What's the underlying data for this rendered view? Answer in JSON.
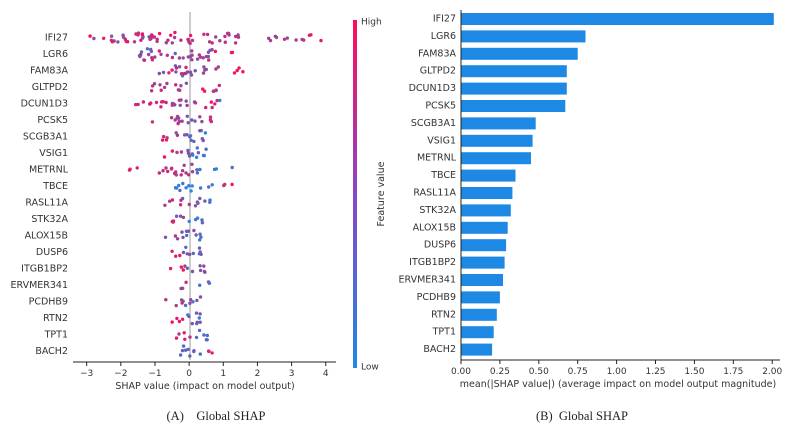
{
  "colors": {
    "low": "#1e88e5",
    "high": "#ff0d57",
    "bar": "#1e88e5",
    "axis": "#222222",
    "zero_line": "#999999"
  },
  "chart_data": [
    {
      "type": "scatter",
      "subtype": "shap-beeswarm",
      "panel_caption": "(A)    Global SHAP",
      "xlabel": "SHAP value (impact on model output)",
      "xlim": [
        -3.4,
        4.3
      ],
      "xticks": [
        -3,
        -2,
        -1,
        0,
        1,
        2,
        3,
        4
      ],
      "grid": false,
      "colorbar": {
        "label": "Feature value",
        "high_label": "High",
        "low_label": "Low"
      },
      "features": [
        "IFI27",
        "LGR6",
        "FAM83A",
        "GLTPD2",
        "DCUN1D3",
        "PCSK5",
        "SCGB3A1",
        "VSIG1",
        "METRNL",
        "TBCE",
        "RASL11A",
        "STK32A",
        "ALOX15B",
        "DUSP6",
        "ITGB1BP2",
        "ERVMER341",
        "PCDHB9",
        "RTN2",
        "TPT1",
        "BACH2"
      ],
      "distributions": [
        {
          "clusters": [
            [
              -2.9,
              -1.0,
              0.2,
              1.1,
              0.1
            ],
            [
              -1.5,
              0.2,
              0.5,
              1.0,
              0.15
            ],
            [
              0.3,
              1.5,
              0.4,
              0.8,
              0.12
            ],
            [
              2.3,
              3.4,
              0.7,
              0.5,
              0.08
            ],
            [
              3.5,
              4.1,
              0.9,
              0.9,
              0.05
            ]
          ]
        },
        {
          "clusters": [
            [
              -1.6,
              -0.4,
              0.2,
              0.9,
              0.15
            ],
            [
              -0.4,
              0.7,
              0.4,
              0.7,
              0.15
            ],
            [
              0.7,
              1.3,
              0.8,
              1.0,
              0.05
            ]
          ]
        },
        {
          "clusters": [
            [
              -1.0,
              0.0,
              0.2,
              1.0,
              0.15
            ],
            [
              0.0,
              0.9,
              0.4,
              0.6,
              0.1
            ],
            [
              0.9,
              1.6,
              0.8,
              1.0,
              0.06
            ]
          ]
        },
        {
          "clusters": [
            [
              -1.1,
              -0.4,
              0.5,
              0.8,
              0.1
            ],
            [
              -0.4,
              0.1,
              0.2,
              0.8,
              0.1
            ],
            [
              0.3,
              0.9,
              0.3,
              1.0,
              0.12
            ]
          ]
        },
        {
          "clusters": [
            [
              -1.8,
              -0.6,
              0.7,
              0.9,
              0.08
            ],
            [
              -0.6,
              0.3,
              0.4,
              0.9,
              0.12
            ],
            [
              0.3,
              0.9,
              0.1,
              1.0,
              0.1
            ]
          ]
        },
        {
          "clusters": [
            [
              -1.1,
              0.0,
              0.2,
              0.8,
              0.1
            ],
            [
              0.0,
              0.4,
              0.3,
              0.7,
              0.1
            ],
            [
              0.5,
              0.9,
              0.6,
              1.0,
              0.08
            ]
          ]
        },
        {
          "clusters": [
            [
              -1.1,
              -0.4,
              0.5,
              1.0,
              0.05
            ],
            [
              -0.4,
              0.0,
              0.3,
              0.8,
              0.1
            ],
            [
              0.0,
              0.5,
              0.0,
              0.5,
              0.18
            ]
          ]
        },
        {
          "clusters": [
            [
              -0.8,
              -0.3,
              0.6,
              1.0,
              0.06
            ],
            [
              -0.3,
              0.1,
              0.3,
              0.7,
              0.1
            ],
            [
              0.0,
              0.5,
              0.0,
              0.4,
              0.15
            ]
          ]
        },
        {
          "clusters": [
            [
              -1.8,
              -1.2,
              0.8,
              1.0,
              0.03
            ],
            [
              -1.2,
              -0.4,
              0.6,
              0.9,
              0.08
            ],
            [
              -0.4,
              0.3,
              0.2,
              0.8,
              0.15
            ],
            [
              0.3,
              1.5,
              0.0,
              0.3,
              0.03
            ]
          ]
        },
        {
          "clusters": [
            [
              -0.4,
              0.3,
              0.0,
              0.3,
              0.12
            ],
            [
              0.3,
              0.7,
              0.1,
              0.3,
              0.05
            ],
            [
              0.9,
              1.6,
              0.7,
              1.0,
              0.04
            ]
          ]
        },
        {
          "clusters": [
            [
              -0.8,
              -0.2,
              0.5,
              0.9,
              0.08
            ],
            [
              -0.2,
              0.4,
              0.2,
              0.6,
              0.1
            ],
            [
              0.4,
              0.8,
              0.1,
              0.4,
              0.04
            ]
          ]
        },
        {
          "clusters": [
            [
              -0.8,
              -0.4,
              0.7,
              1.0,
              0.05
            ],
            [
              -0.4,
              0.0,
              0.3,
              0.7,
              0.06
            ],
            [
              0.0,
              0.4,
              0.0,
              0.3,
              0.12
            ]
          ]
        },
        {
          "clusters": [
            [
              -0.7,
              -0.2,
              0.4,
              0.8,
              0.08
            ],
            [
              -0.2,
              0.4,
              0.1,
              0.5,
              0.15
            ]
          ]
        },
        {
          "clusters": [
            [
              -0.6,
              -0.2,
              0.6,
              1.0,
              0.08
            ],
            [
              -0.2,
              0.4,
              0.2,
              0.6,
              0.15
            ]
          ]
        },
        {
          "clusters": [
            [
              -0.6,
              -0.1,
              0.7,
              1.0,
              0.08
            ],
            [
              -0.1,
              0.5,
              0.2,
              0.6,
              0.12
            ]
          ]
        },
        {
          "clusters": [
            [
              -0.3,
              0.0,
              0.4,
              0.9,
              0.08
            ],
            [
              0.3,
              0.7,
              0.1,
              0.4,
              0.06
            ]
          ]
        },
        {
          "clusters": [
            [
              -0.7,
              -0.2,
              0.5,
              0.9,
              0.08
            ],
            [
              -0.2,
              0.4,
              0.2,
              0.5,
              0.12
            ]
          ]
        },
        {
          "clusters": [
            [
              -0.5,
              -0.1,
              0.7,
              1.0,
              0.1
            ],
            [
              -0.1,
              0.5,
              0.1,
              0.5,
              0.15
            ]
          ]
        },
        {
          "clusters": [
            [
              -0.4,
              0.1,
              0.6,
              0.9,
              0.1
            ],
            [
              0.1,
              0.6,
              0.1,
              0.4,
              0.12
            ]
          ]
        },
        {
          "clusters": [
            [
              -0.3,
              0.1,
              0.1,
              0.5,
              0.15
            ],
            [
              0.1,
              0.4,
              0.2,
              0.4,
              0.08
            ],
            [
              0.4,
              0.7,
              0.8,
              1.0,
              0.05
            ]
          ]
        }
      ]
    },
    {
      "type": "bar",
      "orientation": "horizontal",
      "panel_caption": "(B)  Global SHAP",
      "xlabel": "mean(|SHAP value|) (average impact on model output magnitude)",
      "xlim": [
        0,
        2.05
      ],
      "xtick_labels": [
        "0.00",
        "0.25",
        "0.50",
        "0.75",
        "1.00",
        "1.25",
        "1.50",
        "1.75",
        "2.00"
      ],
      "grid": false,
      "categories": [
        "IFI27",
        "LGR6",
        "FAM83A",
        "GLTPD2",
        "DCUN1D3",
        "PCSK5",
        "SCGB3A1",
        "VSIG1",
        "METRNL",
        "TBCE",
        "RASL11A",
        "STK32A",
        "ALOX15B",
        "DUSP6",
        "ITGB1BP2",
        "ERVMER341",
        "PCDHB9",
        "RTN2",
        "TPT1",
        "BACH2"
      ],
      "values": [
        2.01,
        0.8,
        0.75,
        0.68,
        0.68,
        0.67,
        0.48,
        0.46,
        0.45,
        0.35,
        0.33,
        0.32,
        0.3,
        0.29,
        0.28,
        0.27,
        0.25,
        0.23,
        0.21,
        0.2
      ]
    }
  ]
}
